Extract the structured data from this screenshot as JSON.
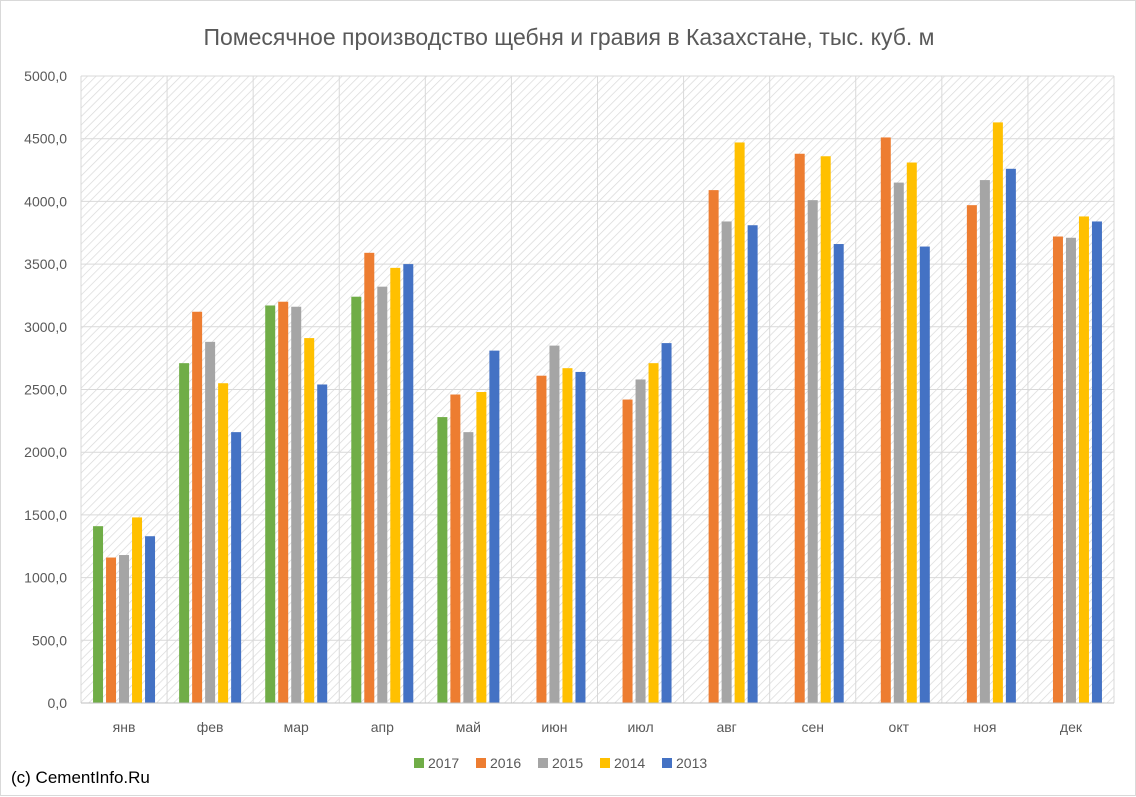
{
  "chart_data": {
    "type": "bar",
    "title": "Помесячное производство щебня и гравия в Казахстане, тыс. куб. м",
    "xlabel": "",
    "ylabel": "",
    "ylim": [
      0,
      5000
    ],
    "yticks": [
      0,
      500,
      1000,
      1500,
      2000,
      2500,
      3000,
      3500,
      4000,
      4500,
      5000
    ],
    "ytick_labels": [
      "0,0",
      "500,0",
      "1000,0",
      "1500,0",
      "2000,0",
      "2500,0",
      "3000,0",
      "3500,0",
      "4000,0",
      "4500,0",
      "5000,0"
    ],
    "grid": true,
    "legend_position": "bottom",
    "categories": [
      "янв",
      "фев",
      "мар",
      "апр",
      "май",
      "июн",
      "июл",
      "авг",
      "сен",
      "окт",
      "ноя",
      "дек"
    ],
    "series": [
      {
        "name": "2017",
        "color": "#70ad47",
        "values": [
          1410,
          2710,
          3170,
          3240,
          2280,
          null,
          null,
          null,
          null,
          null,
          null,
          null
        ]
      },
      {
        "name": "2016",
        "color": "#ed7d31",
        "values": [
          1160,
          3120,
          3200,
          3590,
          2460,
          2610,
          2420,
          4090,
          4380,
          4510,
          3970,
          3720
        ]
      },
      {
        "name": "2015",
        "color": "#a5a5a5",
        "values": [
          1180,
          2880,
          3160,
          3320,
          2160,
          2850,
          2580,
          3840,
          4010,
          4150,
          4170,
          3710
        ]
      },
      {
        "name": "2014",
        "color": "#ffc000",
        "values": [
          1480,
          2550,
          2910,
          3470,
          2480,
          2670,
          2710,
          4470,
          4360,
          4310,
          4630,
          3880
        ]
      },
      {
        "name": "2013",
        "color": "#4472c4",
        "values": [
          1330,
          2160,
          2540,
          3500,
          2810,
          2640,
          2870,
          3810,
          3660,
          3640,
          4260,
          3840
        ]
      }
    ]
  },
  "credit": "(c) CementInfo.Ru"
}
